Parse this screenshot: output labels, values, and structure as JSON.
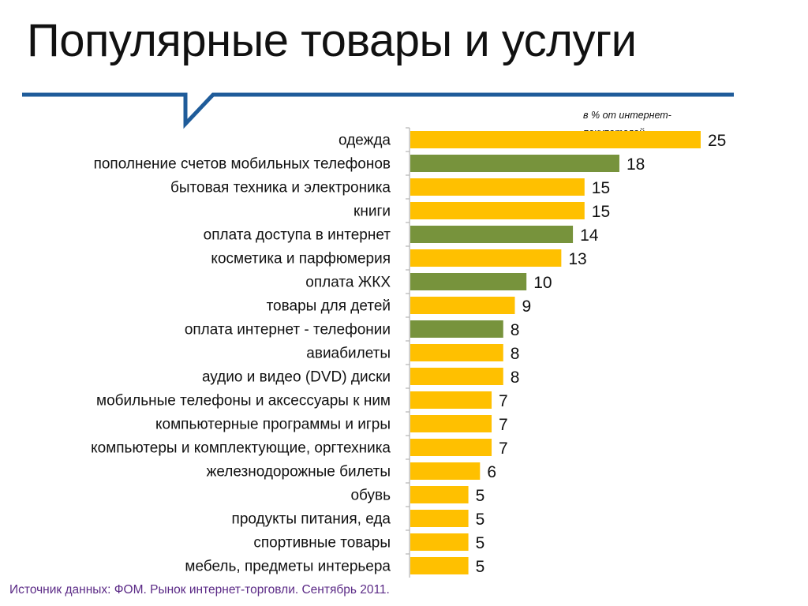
{
  "header": {
    "title": "Популярные товары и услуги"
  },
  "footer": {
    "source": "Источник данных: ФОМ. Рынок интернет-торговли. Сентябрь 2011."
  },
  "colors": {
    "accent_line": "#1f5c9a",
    "goods": "#ffc000",
    "services": "#77933c",
    "source_text": "#5b2a86"
  },
  "chart_data": {
    "type": "bar",
    "orientation": "horizontal",
    "title": "",
    "xlabel": "",
    "ylabel": "",
    "unit_note": "в % от интернет-покупателей",
    "xlim": [
      0,
      25
    ],
    "grid": false,
    "legend": "none",
    "categories": [
      "одежда",
      "пополнение счетов мобильных телефонов",
      "бытовая техника и электроника",
      "книги",
      "оплата доступа в интернет",
      "косметика и парфюмерия",
      "оплата ЖКХ",
      "товары для детей",
      "оплата интернет - телефонии",
      "авиабилеты",
      "аудио и видео (DVD) диски",
      "мобильные телефоны и аксессуары к ним",
      "компьютерные программы и игры",
      "компьютеры и комплектующие, оргтехника",
      "железнодорожные билеты",
      "обувь",
      "продукты питания, еда",
      "спортивные товары",
      "мебель, предметы интерьера"
    ],
    "values": [
      25,
      18,
      15,
      15,
      14,
      13,
      10,
      9,
      8,
      8,
      8,
      7,
      7,
      7,
      6,
      5,
      5,
      5,
      5
    ],
    "bar_colors": [
      "#ffc000",
      "#77933c",
      "#ffc000",
      "#ffc000",
      "#77933c",
      "#ffc000",
      "#77933c",
      "#ffc000",
      "#77933c",
      "#ffc000",
      "#ffc000",
      "#ffc000",
      "#ffc000",
      "#ffc000",
      "#ffc000",
      "#ffc000",
      "#ffc000",
      "#ffc000",
      "#ffc000"
    ]
  }
}
